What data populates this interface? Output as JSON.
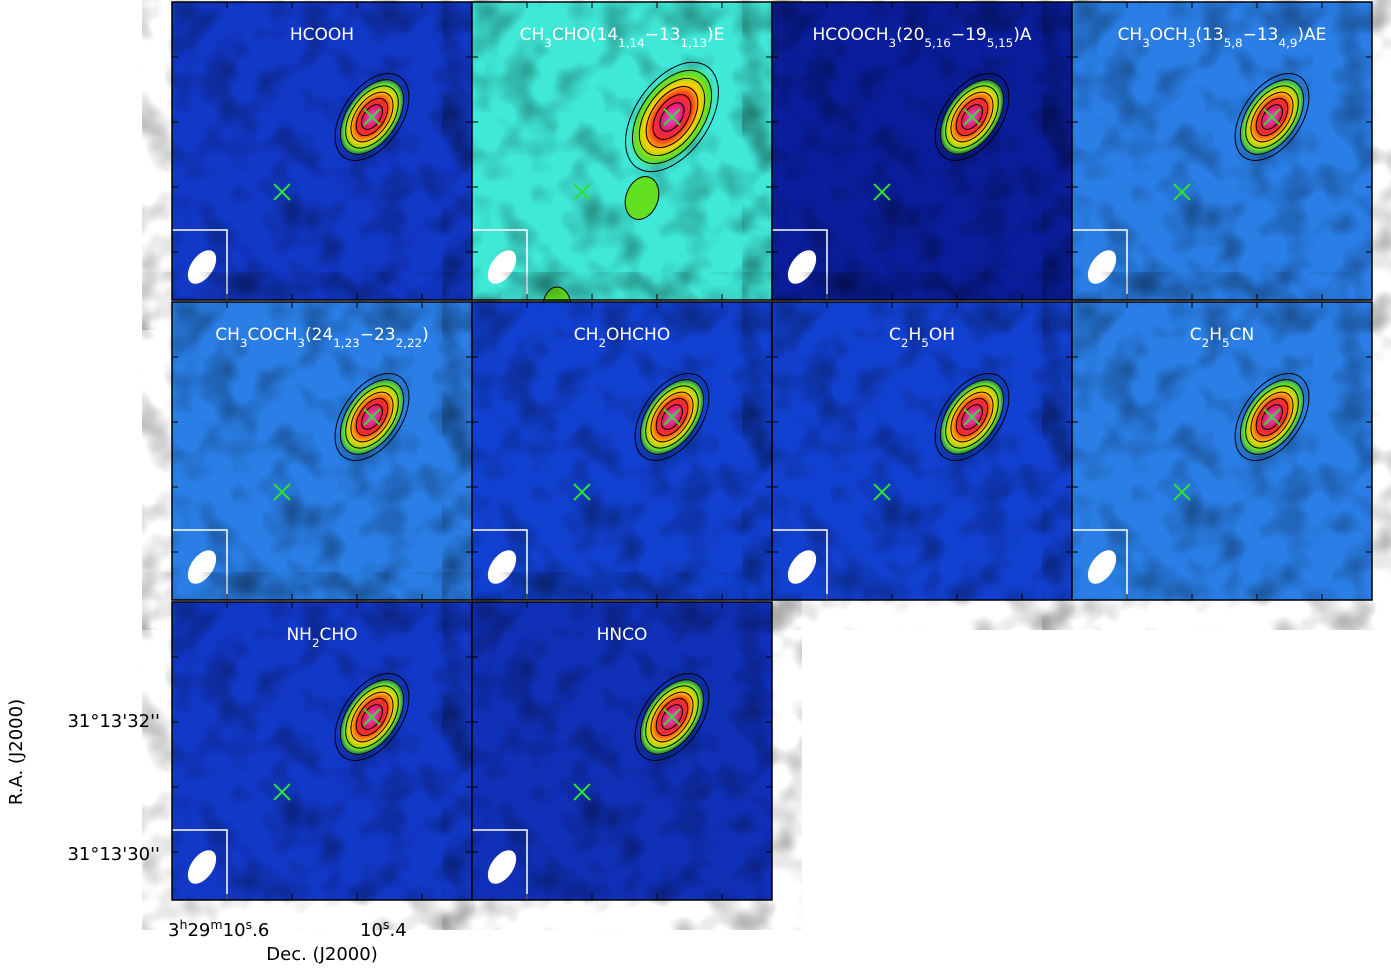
{
  "panels": [
    {
      "title": [
        "HCOOH"
      ]
    },
    {
      "title": [
        "CH",
        "3",
        "CHO(14",
        "1,14",
        "−13",
        "1,13",
        ")E"
      ]
    },
    {
      "title": [
        "HCOOCH",
        "3",
        "(20",
        "5,16",
        "−19",
        "5,15",
        ")A"
      ]
    },
    {
      "title": [
        "CH",
        "3",
        "OCH",
        "3",
        "(13",
        "5,8",
        "−13",
        "4,9",
        ")AE"
      ]
    },
    {
      "title": [
        "CH",
        "3",
        "COCH",
        "3",
        "(24",
        "1,23",
        "−23",
        "2,22",
        ")"
      ]
    },
    {
      "title": [
        "CH",
        "2",
        "OHCHO"
      ]
    },
    {
      "title": [
        "C",
        "2",
        "H",
        "5",
        "OH"
      ]
    },
    {
      "title": [
        "C",
        "2",
        "H",
        "5",
        "CN"
      ]
    },
    {
      "title": [
        "NH",
        "2",
        "CHO"
      ]
    },
    {
      "title": [
        "HNCO"
      ]
    }
  ],
  "axes": {
    "y_label": "R.A. (J2000)",
    "y_ticks": [
      "31°13'32''",
      "31°13'30''"
    ],
    "x_label": "Dec. (J2000)",
    "x_ticks": [
      [
        "3",
        "h",
        "29",
        "m",
        "10",
        "s",
        ".6"
      ],
      [
        "10",
        "s",
        ".4"
      ]
    ]
  }
}
